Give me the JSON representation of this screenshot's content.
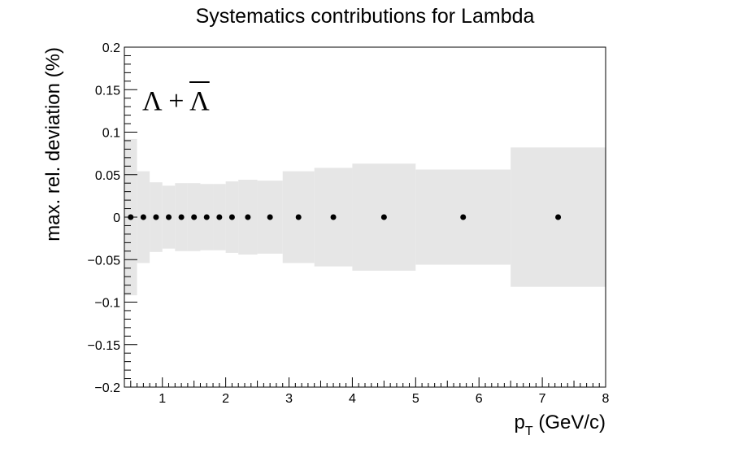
{
  "chart_data": {
    "type": "scatter",
    "title": "Systematics contributions for Lambda",
    "xlabel_main": "p",
    "xlabel_sub": "T",
    "xlabel_rest": " (GeV/c)",
    "ylabel": "max. rel. deviation (%)",
    "annotation": "Λ + Λ",
    "xlim": [
      0.4,
      8.0
    ],
    "ylim": [
      -0.2,
      0.2
    ],
    "xticks": [
      1,
      2,
      3,
      4,
      5,
      6,
      7,
      8
    ],
    "yticks": [
      -0.2,
      -0.15,
      -0.1,
      -0.05,
      0,
      0.05,
      0.1,
      0.15,
      0.2
    ],
    "ytick_labels": [
      "−0.2",
      "−0.15",
      "−0.1",
      "−0.05",
      "0",
      "0.05",
      "0.1",
      "0.15",
      "0.2"
    ],
    "band_color": "#e6e6e6",
    "marker_color": "#000000",
    "grid": false,
    "bins": [
      {
        "low": 0.4,
        "high": 0.6,
        "center": 0.5,
        "value": 0,
        "uncertainty": 0.092
      },
      {
        "low": 0.6,
        "high": 0.8,
        "center": 0.7,
        "value": 0,
        "uncertainty": 0.054
      },
      {
        "low": 0.8,
        "high": 1.0,
        "center": 0.9,
        "value": 0,
        "uncertainty": 0.041
      },
      {
        "low": 1.0,
        "high": 1.2,
        "center": 1.1,
        "value": 0,
        "uncertainty": 0.037
      },
      {
        "low": 1.2,
        "high": 1.4,
        "center": 1.3,
        "value": 0,
        "uncertainty": 0.04
      },
      {
        "low": 1.4,
        "high": 1.6,
        "center": 1.5,
        "value": 0,
        "uncertainty": 0.04
      },
      {
        "low": 1.6,
        "high": 1.8,
        "center": 1.7,
        "value": 0,
        "uncertainty": 0.039
      },
      {
        "low": 1.8,
        "high": 2.0,
        "center": 1.9,
        "value": 0,
        "uncertainty": 0.039
      },
      {
        "low": 2.0,
        "high": 2.2,
        "center": 2.1,
        "value": 0,
        "uncertainty": 0.042
      },
      {
        "low": 2.2,
        "high": 2.5,
        "center": 2.35,
        "value": 0,
        "uncertainty": 0.044
      },
      {
        "low": 2.5,
        "high": 2.9,
        "center": 2.7,
        "value": 0,
        "uncertainty": 0.043
      },
      {
        "low": 2.9,
        "high": 3.4,
        "center": 3.15,
        "value": 0,
        "uncertainty": 0.054
      },
      {
        "low": 3.4,
        "high": 4.0,
        "center": 3.7,
        "value": 0,
        "uncertainty": 0.058
      },
      {
        "low": 4.0,
        "high": 5.0,
        "center": 4.5,
        "value": 0,
        "uncertainty": 0.063
      },
      {
        "low": 5.0,
        "high": 6.5,
        "center": 5.75,
        "value": 0,
        "uncertainty": 0.056
      },
      {
        "low": 6.5,
        "high": 8.0,
        "center": 7.25,
        "value": 0,
        "uncertainty": 0.082
      }
    ]
  }
}
